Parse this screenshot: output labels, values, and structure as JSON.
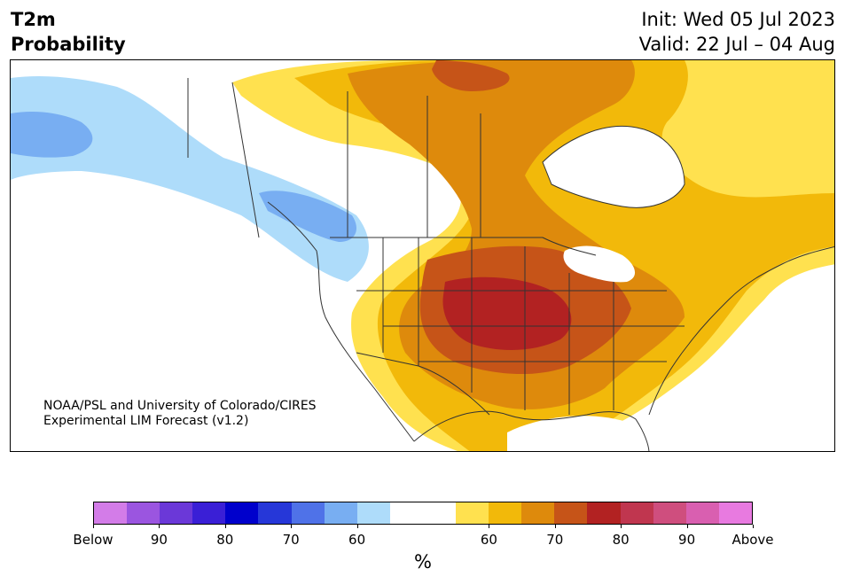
{
  "header": {
    "title_line1": "T2m",
    "title_line2": "Probability",
    "init": "Init: Wed 05 Jul 2023",
    "valid": "Valid: 22 Jul – 04 Aug"
  },
  "credit": {
    "line1": "NOAA/PSL and University of Colorado/CIRES",
    "line2": "Experimental LIM Forecast (v1.2)"
  },
  "colorbar": {
    "colors": [
      "#d37ce8",
      "#9b55e0",
      "#6b38d8",
      "#3a1fd6",
      "#0000cc",
      "#2637d8",
      "#4f72e8",
      "#78aef2",
      "#aedcfa",
      "#ffffff",
      "#ffffff",
      "#ffe14f",
      "#f2b90a",
      "#de8a0c",
      "#c65418",
      "#b22222",
      "#c0364f",
      "#cf4e7e",
      "#d95fb0",
      "#e87ae0"
    ],
    "tick_labels": [
      "Below",
      "90",
      "80",
      "70",
      "60",
      "60",
      "70",
      "80",
      "90",
      "Above"
    ],
    "unit_label": "%"
  },
  "map_colors": {
    "below_60": "#aedcfa",
    "below_70": "#78aef2",
    "above_60": "#ffe14f",
    "above_70": "#f2b90a",
    "above_80": "#de8a0c",
    "above_90": "#c65418",
    "above_max": "#b22222",
    "land_neutral": "#ffffff",
    "water": "#ffffff",
    "borders": "#333333"
  }
}
